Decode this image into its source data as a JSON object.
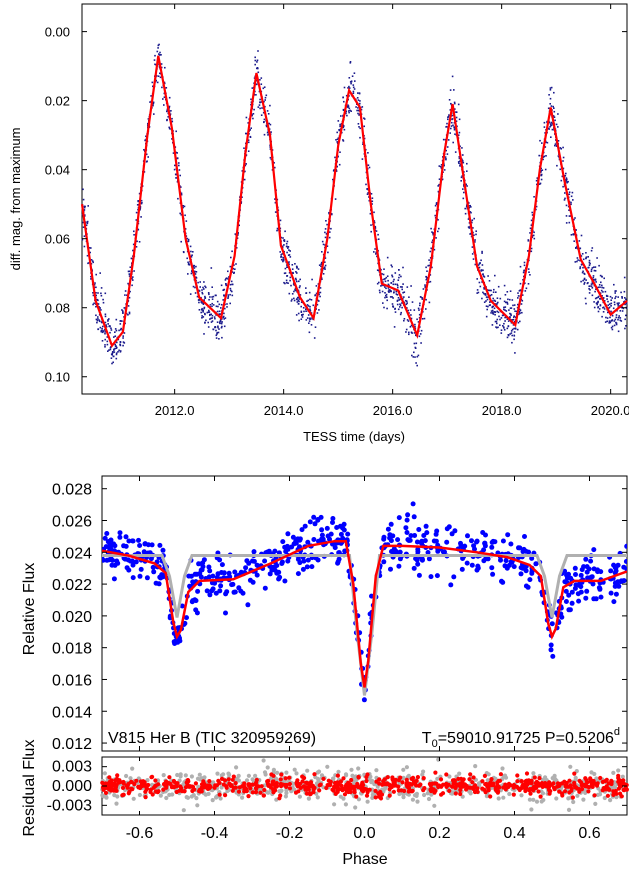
{
  "chart_data": [
    {
      "type": "scatter",
      "xlabel": "TESS time (days)",
      "ylabel": "diff. mag. from maximum",
      "xlim": [
        2010.3,
        2020.3
      ],
      "ylim": [
        0.105,
        -0.008
      ],
      "y_inverted": true,
      "xticks": [
        2012.0,
        2014.0,
        2016.0,
        2018.0,
        2020.0
      ],
      "xtick_labels": [
        "2012.0",
        "2014.0",
        "2016.0",
        "2018.0",
        "2020.0"
      ],
      "yticks": [
        0.0,
        0.02,
        0.04,
        0.06,
        0.08,
        0.1
      ],
      "ytick_labels": [
        "0.00",
        "0.02",
        "0.04",
        "0.06",
        "0.08",
        "0.10"
      ],
      "series": [
        {
          "role": "observations",
          "color": "#1a1a8c",
          "marker": "small-points"
        },
        {
          "role": "model",
          "color": "#ff0000",
          "x": [
            2010.3,
            2010.55,
            2010.85,
            2011.05,
            2011.25,
            2011.5,
            2011.7,
            2011.95,
            2012.2,
            2012.45,
            2012.85,
            2013.1,
            2013.3,
            2013.5,
            2013.75,
            2013.95,
            2014.3,
            2014.55,
            2014.8,
            2015.0,
            2015.2,
            2015.4,
            2015.6,
            2015.8,
            2016.1,
            2016.45,
            2016.7,
            2016.95,
            2017.1,
            2017.3,
            2017.55,
            2017.8,
            2018.25,
            2018.5,
            2018.7,
            2018.9,
            2019.15,
            2019.45,
            2019.7,
            2020.0,
            2020.3
          ],
          "y": [
            0.05,
            0.078,
            0.091,
            0.087,
            0.065,
            0.03,
            0.007,
            0.028,
            0.06,
            0.077,
            0.083,
            0.065,
            0.035,
            0.012,
            0.03,
            0.062,
            0.077,
            0.083,
            0.06,
            0.033,
            0.017,
            0.022,
            0.05,
            0.073,
            0.075,
            0.088,
            0.068,
            0.035,
            0.021,
            0.042,
            0.068,
            0.078,
            0.085,
            0.065,
            0.04,
            0.022,
            0.043,
            0.066,
            0.073,
            0.082,
            0.078
          ]
        }
      ]
    },
    {
      "type": "scatter",
      "xlabel": "Phase",
      "ylabel": "Relative Flux",
      "xlim": [
        -0.7,
        0.7
      ],
      "ylim": [
        0.0115,
        0.0288
      ],
      "xticks": [
        -0.6,
        -0.4,
        -0.2,
        0.0,
        0.2,
        0.4,
        0.6
      ],
      "xtick_labels": [
        "-0.6",
        "-0.4",
        "-0.2",
        "0.0",
        "0.2",
        "0.4",
        "0.6"
      ],
      "yticks": [
        0.012,
        0.014,
        0.016,
        0.018,
        0.02,
        0.022,
        0.024,
        0.026,
        0.028
      ],
      "ytick_labels": [
        "0.012",
        "0.014",
        "0.016",
        "0.018",
        "0.020",
        "0.022",
        "0.024",
        "0.026",
        "0.028"
      ],
      "annotation_left": "V815 Her B (TIC 320959269)",
      "annotation_right": {
        "t_prefix": "T",
        "t_sub": "0",
        "t_value": "=59010.91725 P=0.5206",
        "p_sup": "d"
      },
      "series": [
        {
          "role": "observations",
          "color": "#0000ff",
          "marker": "dots"
        },
        {
          "role": "ellipsoidal-model",
          "color": "#ff0000",
          "x": [
            -0.7,
            -0.63,
            -0.56,
            -0.53,
            -0.51,
            -0.5,
            -0.49,
            -0.47,
            -0.44,
            -0.35,
            -0.25,
            -0.15,
            -0.08,
            -0.05,
            -0.03,
            -0.01,
            0.0,
            0.01,
            0.03,
            0.05,
            0.1,
            0.2,
            0.3,
            0.38,
            0.44,
            0.47,
            0.49,
            0.5,
            0.51,
            0.53,
            0.56,
            0.63,
            0.7
          ],
          "y": [
            0.0241,
            0.0238,
            0.0233,
            0.0227,
            0.0196,
            0.0187,
            0.0191,
            0.0215,
            0.0222,
            0.0223,
            0.0233,
            0.0244,
            0.0247,
            0.0247,
            0.022,
            0.017,
            0.0155,
            0.0172,
            0.0225,
            0.0244,
            0.0244,
            0.0243,
            0.024,
            0.0237,
            0.0232,
            0.0225,
            0.0195,
            0.0187,
            0.0192,
            0.0218,
            0.0222,
            0.0222,
            0.0228
          ]
        },
        {
          "role": "eclipse-only-model",
          "color": "#b0b0b0",
          "x": [
            -0.7,
            -0.54,
            -0.52,
            -0.5,
            -0.48,
            -0.46,
            -0.04,
            -0.02,
            0.0,
            0.02,
            0.04,
            0.46,
            0.48,
            0.5,
            0.52,
            0.54,
            0.7
          ],
          "y": [
            0.0238,
            0.0238,
            0.0225,
            0.0199,
            0.0225,
            0.0238,
            0.0238,
            0.019,
            0.015,
            0.019,
            0.0238,
            0.0238,
            0.0225,
            0.0199,
            0.0225,
            0.0238,
            0.0238
          ]
        }
      ]
    },
    {
      "type": "scatter",
      "xlabel": "Phase",
      "ylabel": "Residual Flux",
      "xlim": [
        -0.7,
        0.7
      ],
      "ylim": [
        -0.0045,
        0.0045
      ],
      "yticks": [
        -0.003,
        0.0,
        0.003
      ],
      "ytick_labels": [
        "-0.003",
        "0.000",
        "0.003"
      ],
      "series": [
        {
          "role": "residuals-ellipsoidal",
          "color": "#ff0000",
          "marker": "dots",
          "scatter_sigma": 0.0007
        },
        {
          "role": "residuals-eclipse-only",
          "color": "#b0b0b0",
          "marker": "dots",
          "scatter_sigma": 0.0012
        }
      ]
    }
  ]
}
